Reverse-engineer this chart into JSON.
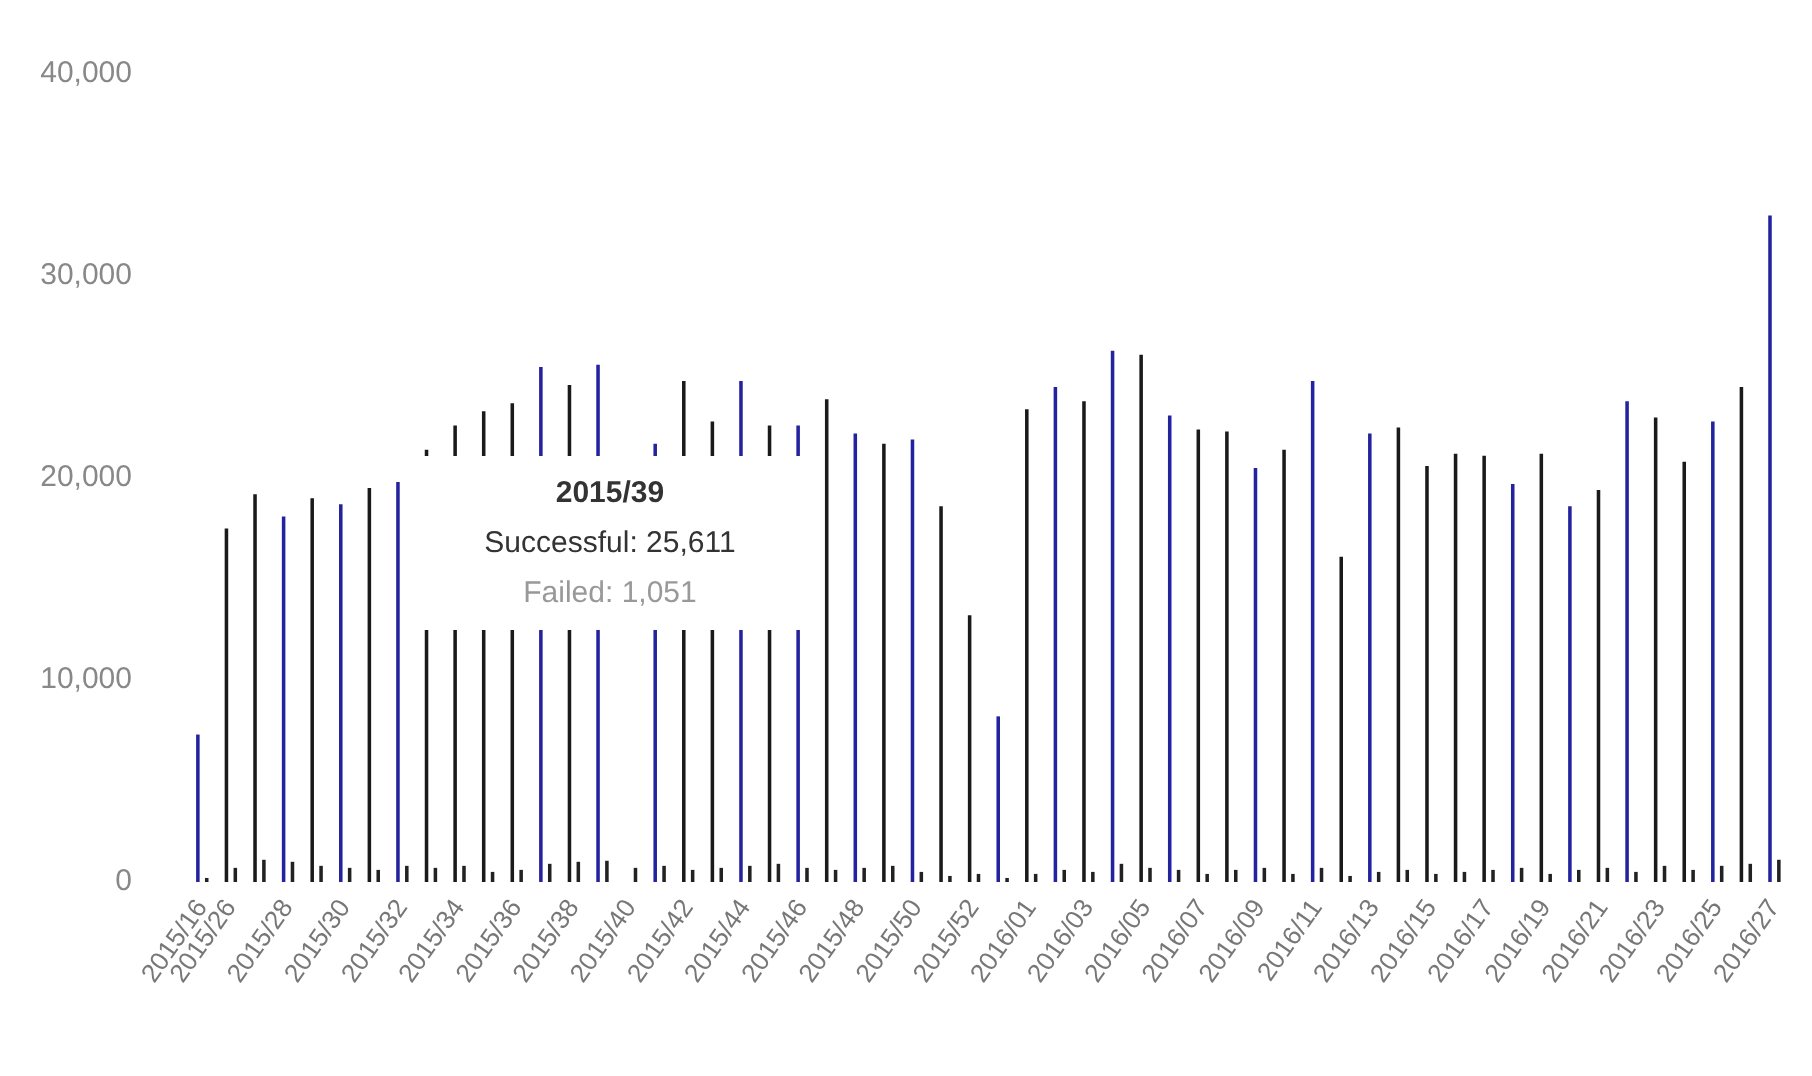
{
  "chart_data": {
    "type": "bar",
    "categories": [
      "2015/16",
      "2015/26",
      null,
      "2015/28",
      null,
      "2015/30",
      null,
      "2015/32",
      null,
      "2015/34",
      null,
      "2015/36",
      null,
      "2015/38",
      null,
      "2015/40",
      null,
      "2015/42",
      null,
      "2015/44",
      null,
      "2015/46",
      null,
      "2015/48",
      null,
      "2015/50",
      null,
      "2015/52",
      null,
      "2016/01",
      null,
      "2016/03",
      null,
      "2016/05",
      null,
      "2016/07",
      null,
      "2016/09",
      null,
      "2016/11",
      null,
      "2016/13",
      null,
      "2016/15",
      null,
      "2016/17",
      null,
      "2016/19",
      null,
      "2016/21",
      null,
      "2016/23",
      null,
      "2016/25",
      null,
      "2016/27"
    ],
    "series": [
      {
        "colors": [
          "#2323a0",
          "#1a1a1a",
          "#1a1a1a",
          "#2323a0",
          "#1a1a1a",
          "#2323a0",
          "#1a1a1a",
          "#2323a0",
          "#1a1a1a",
          "#1a1a1a",
          "#1a1a1a",
          "#1a1a1a",
          "#2323a0",
          "#1a1a1a",
          "#2323a0",
          "#1a1a1a",
          "#2323a0",
          "#1a1a1a",
          "#1a1a1a",
          "#2323a0",
          "#1a1a1a",
          "#2323a0",
          "#1a1a1a",
          "#2323a0",
          "#1a1a1a",
          "#2323a0",
          "#1a1a1a",
          "#1a1a1a",
          "#2323a0",
          "#1a1a1a",
          "#2323a0",
          "#1a1a1a",
          "#2323a0",
          "#1a1a1a",
          "#2323a0",
          "#1a1a1a",
          "#1a1a1a",
          "#2323a0",
          "#1a1a1a",
          "#2323a0",
          "#1a1a1a",
          "#2323a0",
          "#1a1a1a",
          "#1a1a1a",
          "#1a1a1a",
          "#1a1a1a",
          "#2323a0",
          "#1a1a1a",
          "#2323a0",
          "#1a1a1a",
          "#2323a0",
          "#1a1a1a",
          "#1a1a1a",
          "#2323a0",
          "#1a1a1a",
          "#2323a0"
        ],
        "values": [
          7300,
          17500,
          19200,
          18100,
          19000,
          18700,
          19500,
          19800,
          21400,
          22600,
          23300,
          23700,
          25500,
          24600,
          25611,
          null,
          21700,
          24800,
          22800,
          24800,
          22600,
          22600,
          23900,
          22200,
          21700,
          21900,
          18600,
          13200,
          8200,
          23400,
          24500,
          23800,
          26300,
          26100,
          23100,
          22400,
          22300,
          20500,
          21400,
          24800,
          16100,
          22200,
          22500,
          20600,
          21200,
          21100,
          19700,
          21200,
          18600,
          19400,
          23800,
          23000,
          20800,
          22800,
          24500,
          33000
        ]
      },
      {
        "color": "#222222",
        "values": [
          200,
          700,
          1100,
          1000,
          800,
          700,
          600,
          800,
          700,
          800,
          500,
          600,
          900,
          1000,
          1051,
          700,
          800,
          600,
          700,
          800,
          900,
          700,
          600,
          700,
          800,
          500,
          300,
          400,
          200,
          400,
          600,
          500,
          900,
          700,
          600,
          400,
          600,
          700,
          400,
          700,
          300,
          500,
          600,
          400,
          500,
          600,
          700,
          400,
          600,
          700,
          500,
          800,
          600,
          800,
          900,
          1100
        ]
      }
    ],
    "ylim": [
      0,
      40000
    ],
    "yticks": [
      {
        "value": 0,
        "label": "0"
      },
      {
        "value": 10000,
        "label": "10,000"
      },
      {
        "value": 20000,
        "label": "20,000"
      },
      {
        "value": 30000,
        "label": "30,000"
      },
      {
        "value": 40000,
        "label": "40,000"
      }
    ],
    "grid": false,
    "legend": false,
    "annotations": [
      "2015/39",
      "Successful: 25,611",
      "Failed: 1,051"
    ]
  }
}
